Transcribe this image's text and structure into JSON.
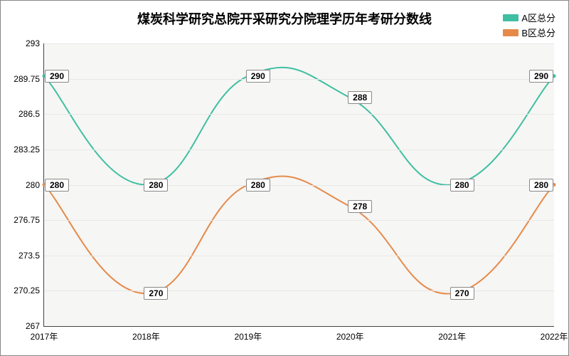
{
  "chart": {
    "type": "line",
    "title": "煤炭科学研究总院开采研究分院理学历年考研分数线",
    "title_fontsize": 18,
    "background_color": "#ffffff",
    "plot_background_color": "#f6f6f4",
    "grid_color": "#e8e8e8",
    "axis_color": "#444444",
    "label_fontsize": 12,
    "line_width": 2,
    "x": {
      "categories": [
        "2017年",
        "2018年",
        "2019年",
        "2020年",
        "2021年",
        "2022年"
      ]
    },
    "y": {
      "min": 267,
      "max": 293,
      "ticks": [
        267,
        270.25,
        273.5,
        276.75,
        280,
        283.25,
        286.5,
        289.75,
        293
      ]
    },
    "series": [
      {
        "name": "A区总分",
        "color": "#3fbfa1",
        "values": [
          290,
          280,
          290,
          288,
          280,
          290
        ]
      },
      {
        "name": "B区总分",
        "color": "#e68a4a",
        "values": [
          280,
          270,
          280,
          278,
          270,
          280
        ]
      }
    ],
    "legend": {
      "position": "top-right",
      "fontsize": 13
    },
    "datalabel": {
      "bg": "#ffffff",
      "border": "#888888",
      "fontsize": 12,
      "fontweight": "bold"
    }
  }
}
